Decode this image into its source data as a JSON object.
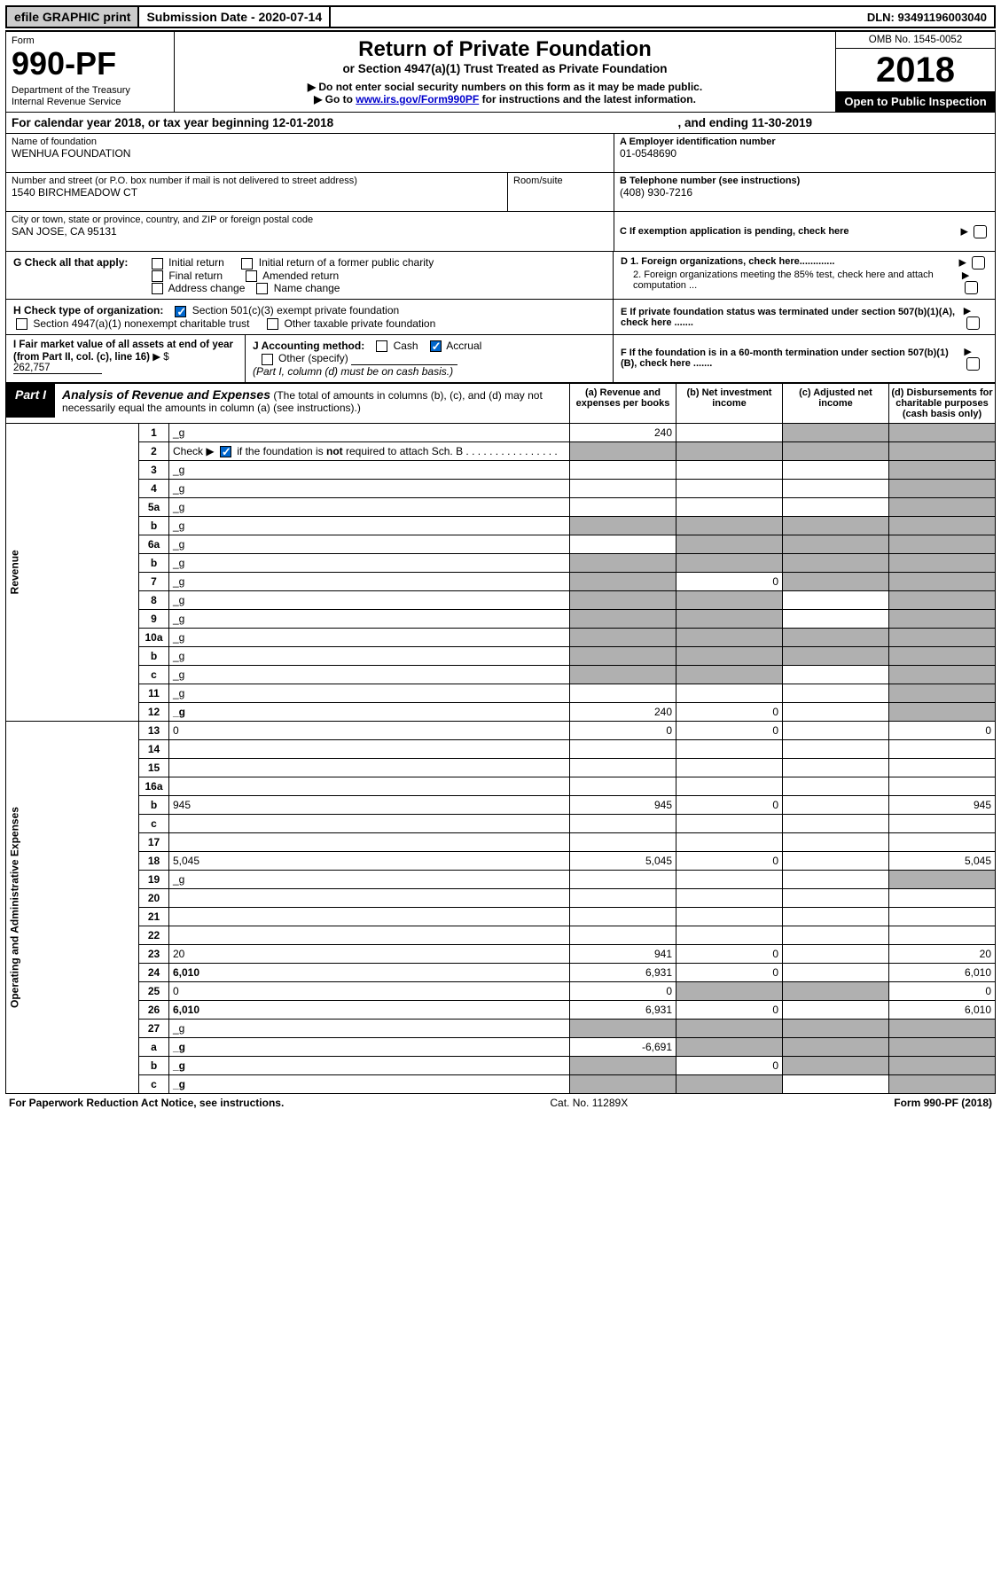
{
  "topbar": {
    "efile": "efile GRAPHIC print",
    "submission_label": "Submission Date - 2020-07-14",
    "dln": "DLN: 93491196003040"
  },
  "header": {
    "form_label": "Form",
    "form_number": "990-PF",
    "dept1": "Department of the Treasury",
    "dept2": "Internal Revenue Service",
    "title": "Return of Private Foundation",
    "subtitle": "or Section 4947(a)(1) Trust Treated as Private Foundation",
    "note1": "▶ Do not enter social security numbers on this form as it may be made public.",
    "note2_pre": "▶ Go to ",
    "note2_link": "www.irs.gov/Form990PF",
    "note2_post": " for instructions and the latest information.",
    "omb": "OMB No. 1545-0052",
    "year": "2018",
    "open": "Open to Public Inspection"
  },
  "cal": {
    "text1": "For calendar year 2018, or tax year beginning 12-01-2018",
    "text2": ", and ending 11-30-2019"
  },
  "id": {
    "name_label": "Name of foundation",
    "name": "WENHUA FOUNDATION",
    "addr_label": "Number and street (or P.O. box number if mail is not delivered to street address)",
    "addr": "1540 BIRCHMEADOW CT",
    "room_label": "Room/suite",
    "city_label": "City or town, state or province, country, and ZIP or foreign postal code",
    "city": "SAN JOSE, CA  95131",
    "a_label": "A Employer identification number",
    "a_val": "01-0548690",
    "b_label": "B Telephone number (see instructions)",
    "b_val": "(408) 930-7216",
    "c_label": "C If exemption application is pending, check here",
    "d1": "D 1. Foreign organizations, check here.............",
    "d2": "2. Foreign organizations meeting the 85% test, check here and attach computation ...",
    "e": "E  If private foundation status was terminated under section 507(b)(1)(A), check here .......",
    "f": "F  If the foundation is in a 60-month termination under section 507(b)(1)(B), check here .......",
    "g_label": "G Check all that apply:",
    "g_opts": [
      "Initial return",
      "Initial return of a former public charity",
      "Final return",
      "Amended return",
      "Address change",
      "Name change"
    ],
    "h_label": "H Check type of organization:",
    "h_opt1": "Section 501(c)(3) exempt private foundation",
    "h_opt2": "Section 4947(a)(1) nonexempt charitable trust",
    "h_opt3": "Other taxable private foundation",
    "i_label": "I Fair market value of all assets at end of year (from Part II, col. (c), line 16)",
    "i_val": "262,757",
    "j_label": "J Accounting method:",
    "j_cash": "Cash",
    "j_accrual": "Accrual",
    "j_other": "Other (specify)",
    "j_note": "(Part I, column (d) must be on cash basis.)"
  },
  "part1": {
    "label": "Part I",
    "title": "Analysis of Revenue and Expenses",
    "title_note": " (The total of amounts in columns (b), (c), and (d) may not necessarily equal the amounts in column (a) (see instructions).)",
    "cols": {
      "a": "(a)    Revenue and expenses per books",
      "b": "(b)   Net investment income",
      "c": "(c)   Adjusted net income",
      "d": "(d)   Disbursements for charitable purposes (cash basis only)"
    }
  },
  "sections": {
    "revenue": "Revenue",
    "opex": "Operating and Administrative Expenses"
  },
  "rows": [
    {
      "n": "1",
      "d": "_g",
      "a": "240",
      "b": "",
      "c": "_g"
    },
    {
      "n": "2",
      "d": "_g",
      "a": "_g",
      "b": "_g",
      "c": "_g",
      "special": "check"
    },
    {
      "n": "3",
      "d": "_g",
      "a": "",
      "b": "",
      "c": ""
    },
    {
      "n": "4",
      "d": "_g",
      "a": "",
      "b": "",
      "c": ""
    },
    {
      "n": "5a",
      "d": "_g",
      "a": "",
      "b": "",
      "c": ""
    },
    {
      "n": "b",
      "d": "_g",
      "a": "_g",
      "b": "_g",
      "c": "_g"
    },
    {
      "n": "6a",
      "d": "_g",
      "a": "",
      "b": "_g",
      "c": "_g"
    },
    {
      "n": "b",
      "d": "_g",
      "a": "_g",
      "b": "_g",
      "c": "_g"
    },
    {
      "n": "7",
      "d": "_g",
      "a": "_g",
      "b": "0",
      "c": "_g"
    },
    {
      "n": "8",
      "d": "_g",
      "a": "_g",
      "b": "_g",
      "c": ""
    },
    {
      "n": "9",
      "d": "_g",
      "a": "_g",
      "b": "_g",
      "c": ""
    },
    {
      "n": "10a",
      "d": "_g",
      "a": "_g",
      "b": "_g",
      "c": "_g"
    },
    {
      "n": "b",
      "d": "_g",
      "a": "_g",
      "b": "_g",
      "c": "_g"
    },
    {
      "n": "c",
      "d": "_g",
      "a": "_g",
      "b": "_g",
      "c": ""
    },
    {
      "n": "11",
      "d": "_g",
      "a": "",
      "b": "",
      "c": ""
    },
    {
      "n": "12",
      "d": "_g",
      "a": "240",
      "b": "0",
      "c": "",
      "bold": true
    },
    {
      "n": "13",
      "d": "0",
      "a": "0",
      "b": "0",
      "c": ""
    },
    {
      "n": "14",
      "d": "",
      "a": "",
      "b": "",
      "c": ""
    },
    {
      "n": "15",
      "d": "",
      "a": "",
      "b": "",
      "c": ""
    },
    {
      "n": "16a",
      "d": "",
      "a": "",
      "b": "",
      "c": ""
    },
    {
      "n": "b",
      "d": "945",
      "a": "945",
      "b": "0",
      "c": ""
    },
    {
      "n": "c",
      "d": "",
      "a": "",
      "b": "",
      "c": ""
    },
    {
      "n": "17",
      "d": "",
      "a": "",
      "b": "",
      "c": ""
    },
    {
      "n": "18",
      "d": "5,045",
      "a": "5,045",
      "b": "0",
      "c": ""
    },
    {
      "n": "19",
      "d": "_g",
      "a": "",
      "b": "",
      "c": ""
    },
    {
      "n": "20",
      "d": "",
      "a": "",
      "b": "",
      "c": ""
    },
    {
      "n": "21",
      "d": "",
      "a": "",
      "b": "",
      "c": ""
    },
    {
      "n": "22",
      "d": "",
      "a": "",
      "b": "",
      "c": ""
    },
    {
      "n": "23",
      "d": "20",
      "a": "941",
      "b": "0",
      "c": ""
    },
    {
      "n": "24",
      "d": "6,010",
      "a": "6,931",
      "b": "0",
      "c": "",
      "bold": true
    },
    {
      "n": "25",
      "d": "0",
      "a": "0",
      "b": "_g",
      "c": "_g"
    },
    {
      "n": "26",
      "d": "6,010",
      "a": "6,931",
      "b": "0",
      "c": "",
      "bold": true
    },
    {
      "n": "27",
      "d": "_g",
      "a": "_g",
      "b": "_g",
      "c": "_g"
    },
    {
      "n": "a",
      "d": "_g",
      "a": "-6,691",
      "b": "_g",
      "c": "_g",
      "bold": true
    },
    {
      "n": "b",
      "d": "_g",
      "a": "_g",
      "b": "0",
      "c": "_g",
      "bold": true
    },
    {
      "n": "c",
      "d": "_g",
      "a": "_g",
      "b": "_g",
      "c": "",
      "bold": true
    }
  ],
  "footer": {
    "left": "For Paperwork Reduction Act Notice, see instructions.",
    "mid": "Cat. No. 11289X",
    "right": "Form 990-PF (2018)"
  },
  "style": {
    "grey": "#b0b0b0",
    "link": "#0000cc",
    "check_blue": "#0066cc"
  }
}
